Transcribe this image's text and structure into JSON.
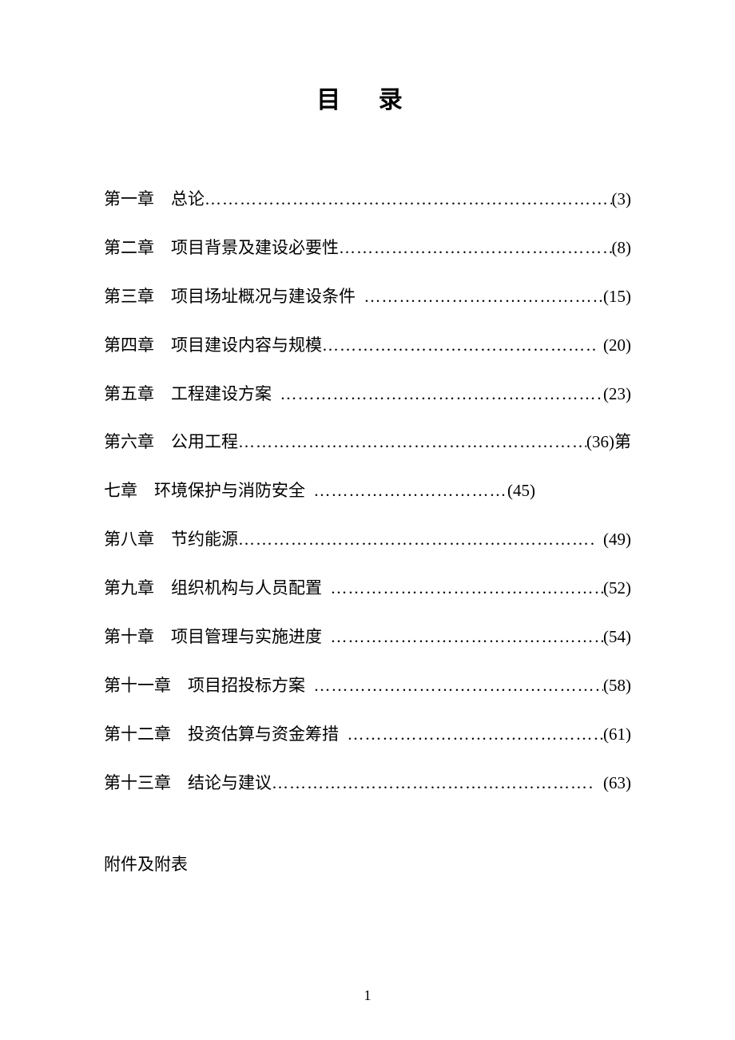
{
  "title": "目 录",
  "toc": {
    "entries": [
      {
        "chapter": "第一章",
        "gap": "　",
        "name": "总论",
        "page": "(3)",
        "space_before_dots": false,
        "space_before_page": false,
        "wrap_tail": ""
      },
      {
        "chapter": "第二章",
        "gap": "　",
        "name": "项目背景及建设必要性",
        "page": "(8)",
        "space_before_dots": false,
        "space_before_page": false,
        "wrap_tail": ""
      },
      {
        "chapter": "第三章",
        "gap": "　",
        "name": "项目场址概况与建设条件",
        "page": "(15)",
        "space_before_dots": true,
        "space_before_page": false,
        "wrap_tail": ""
      },
      {
        "chapter": "第四章",
        "gap": "　",
        "name": "项目建设内容与规模",
        "page": "(20)",
        "space_before_dots": false,
        "space_before_page": true,
        "wrap_tail": ""
      },
      {
        "chapter": "第五章",
        "gap": "　",
        "name": "工程建设方案",
        "page": "(23)",
        "space_before_dots": true,
        "space_before_page": false,
        "wrap_tail": ""
      },
      {
        "chapter": "第六章",
        "gap": "　",
        "name": "公用工程",
        "page": "(36)",
        "space_before_dots": false,
        "space_before_page": false,
        "wrap_tail": "第"
      }
    ],
    "wrapped_entry": {
      "chapter": "七章",
      "gap": "　",
      "name": "环境保护与消防安全",
      "page": "(45)",
      "space_before_dots": true,
      "space_before_page": false
    },
    "entries2": [
      {
        "chapter": "第八章",
        "gap": "　",
        "name": "节约能源",
        "page": "(49)",
        "space_before_dots": false,
        "space_before_page": true,
        "wrap_tail": ""
      },
      {
        "chapter": "第九章",
        "gap": "　",
        "name": "组织机构与人员配置",
        "page": "(52)",
        "space_before_dots": true,
        "space_before_page": false,
        "wrap_tail": ""
      },
      {
        "chapter": "第十章",
        "gap": "　",
        "name": "项目管理与实施进度",
        "page": "(54)",
        "space_before_dots": true,
        "space_before_page": false,
        "wrap_tail": ""
      },
      {
        "chapter": "第十一章",
        "gap": "　",
        "name": "项目招投标方案",
        "page": "(58)",
        "space_before_dots": true,
        "space_before_page": false,
        "wrap_tail": ""
      },
      {
        "chapter": "第十二章",
        "gap": "　",
        "name": "投资估算与资金筹措",
        "page": "(61)",
        "space_before_dots": true,
        "space_before_page": false,
        "wrap_tail": ""
      },
      {
        "chapter": "第十三章",
        "gap": "　",
        "name": "结论与建议",
        "page": "(63)",
        "space_before_dots": false,
        "space_before_page": true,
        "wrap_tail": ""
      }
    ]
  },
  "appendix": "附件及附表",
  "page_number": "1",
  "wrapped_right_limit": "540px"
}
